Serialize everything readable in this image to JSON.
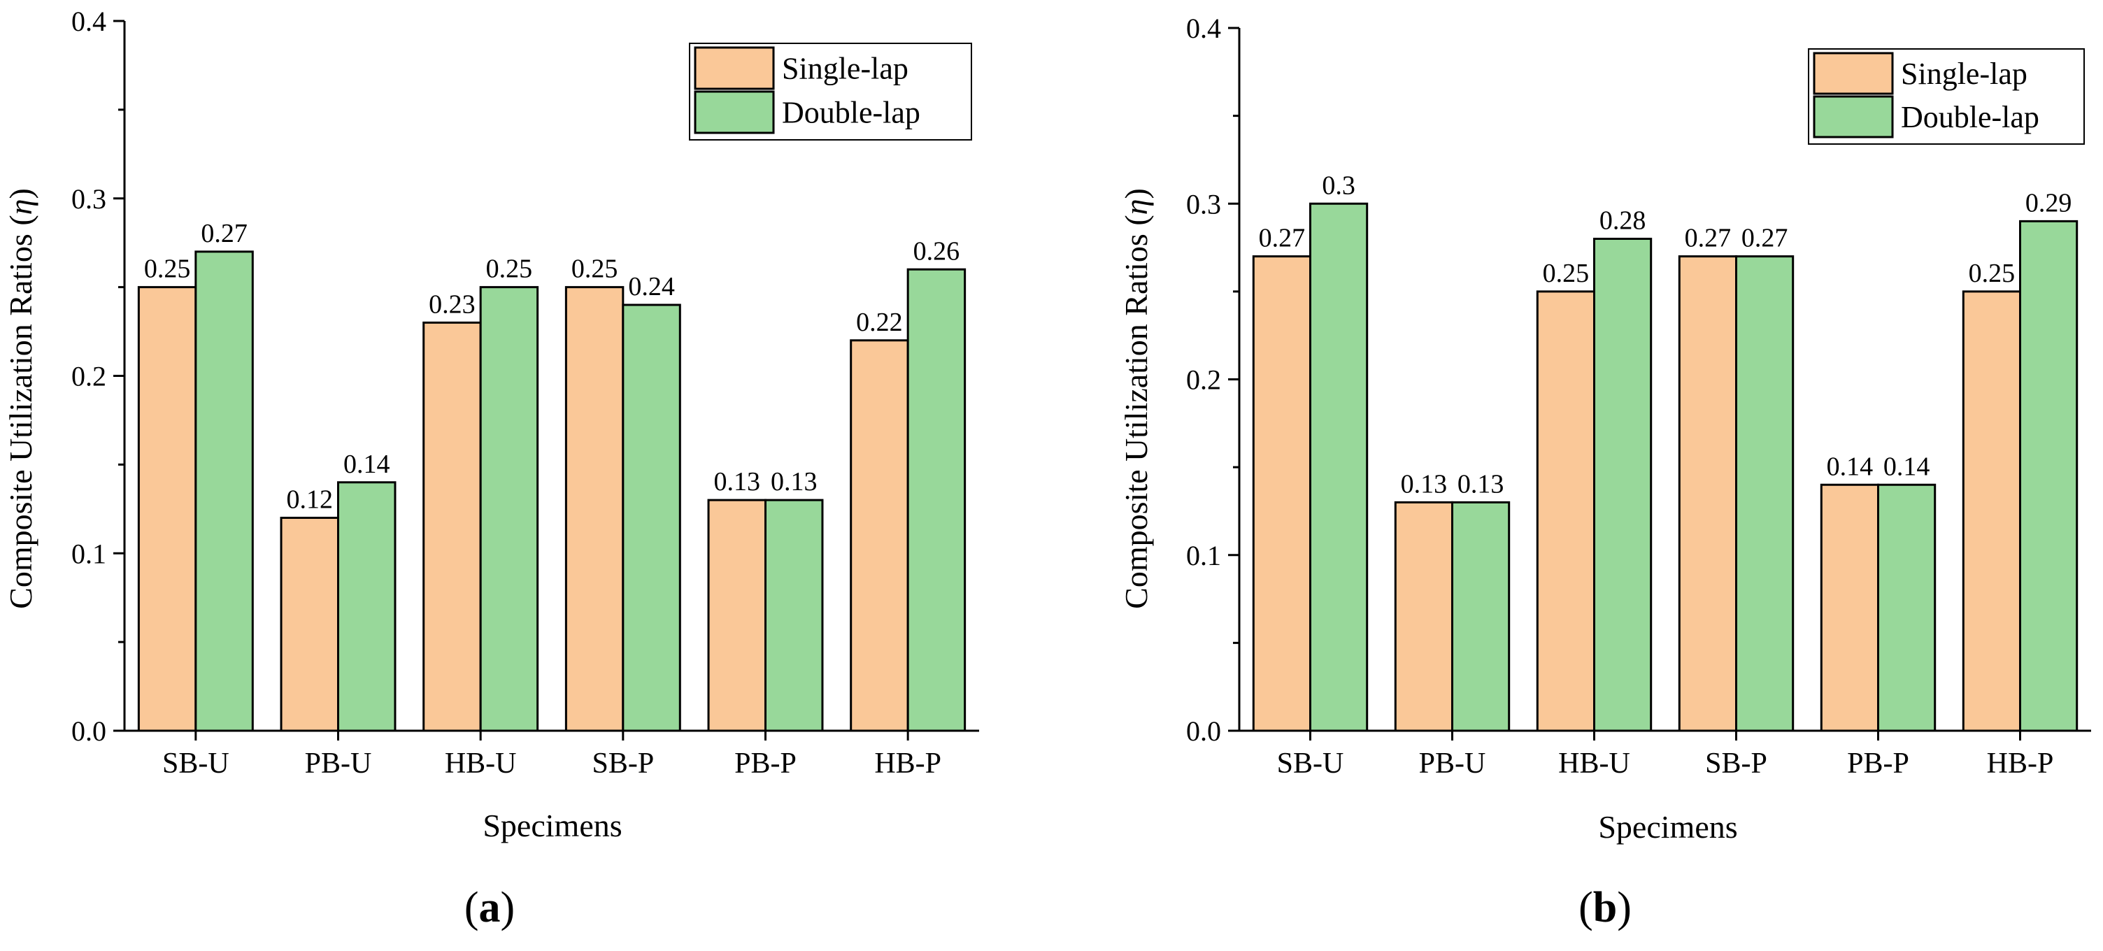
{
  "chart_data": [
    {
      "type": "bar",
      "panel_label": "a",
      "categories": [
        "SB-U",
        "PB-U",
        "HB-U",
        "SB-P",
        "PB-P",
        "HB-P"
      ],
      "series": [
        {
          "name": "Single-lap",
          "values": [
            0.25,
            0.12,
            0.23,
            0.25,
            0.13,
            0.22
          ],
          "labels": [
            "0.25",
            "0.12",
            "0.23",
            "0.25",
            "0.13",
            "0.22"
          ]
        },
        {
          "name": "Double-lap",
          "values": [
            0.27,
            0.14,
            0.25,
            0.24,
            0.13,
            0.26
          ],
          "labels": [
            "0.27",
            "0.14",
            "0.25",
            "0.24",
            "0.13",
            "0.26"
          ]
        }
      ],
      "xlabel": "Specimens",
      "ylabel": "Composite Utilization Ratios (",
      "ylabel_symbol": "η",
      "ylabel_close": ")",
      "ylim": [
        0.0,
        0.4
      ],
      "yticks": [
        "0.0",
        "0.1",
        "0.2",
        "0.3",
        "0.4"
      ],
      "legend_position": "top-right",
      "grid": false
    },
    {
      "type": "bar",
      "panel_label": "b",
      "categories": [
        "SB-U",
        "PB-U",
        "HB-U",
        "SB-P",
        "PB-P",
        "HB-P"
      ],
      "series": [
        {
          "name": "Single-lap",
          "values": [
            0.27,
            0.13,
            0.25,
            0.27,
            0.14,
            0.25
          ],
          "labels": [
            "0.27",
            "0.13",
            "0.25",
            "0.27",
            "0.14",
            "0.25"
          ]
        },
        {
          "name": "Double-lap",
          "values": [
            0.3,
            0.13,
            0.28,
            0.27,
            0.14,
            0.29
          ],
          "labels": [
            "0.3",
            "0.13",
            "0.28",
            "0.27",
            "0.14",
            "0.29"
          ]
        }
      ],
      "xlabel": "Specimens",
      "ylabel": "Composite Utilization Ratios (",
      "ylabel_symbol": "η",
      "ylabel_close": ")",
      "ylim": [
        0.0,
        0.4
      ],
      "yticks": [
        "0.0",
        "0.1",
        "0.2",
        "0.3",
        "0.4"
      ],
      "legend_position": "top-right",
      "grid": false
    }
  ],
  "colors": {
    "single_lap": "#FAC898",
    "double_lap": "#98D89A",
    "axis": "#000000"
  }
}
